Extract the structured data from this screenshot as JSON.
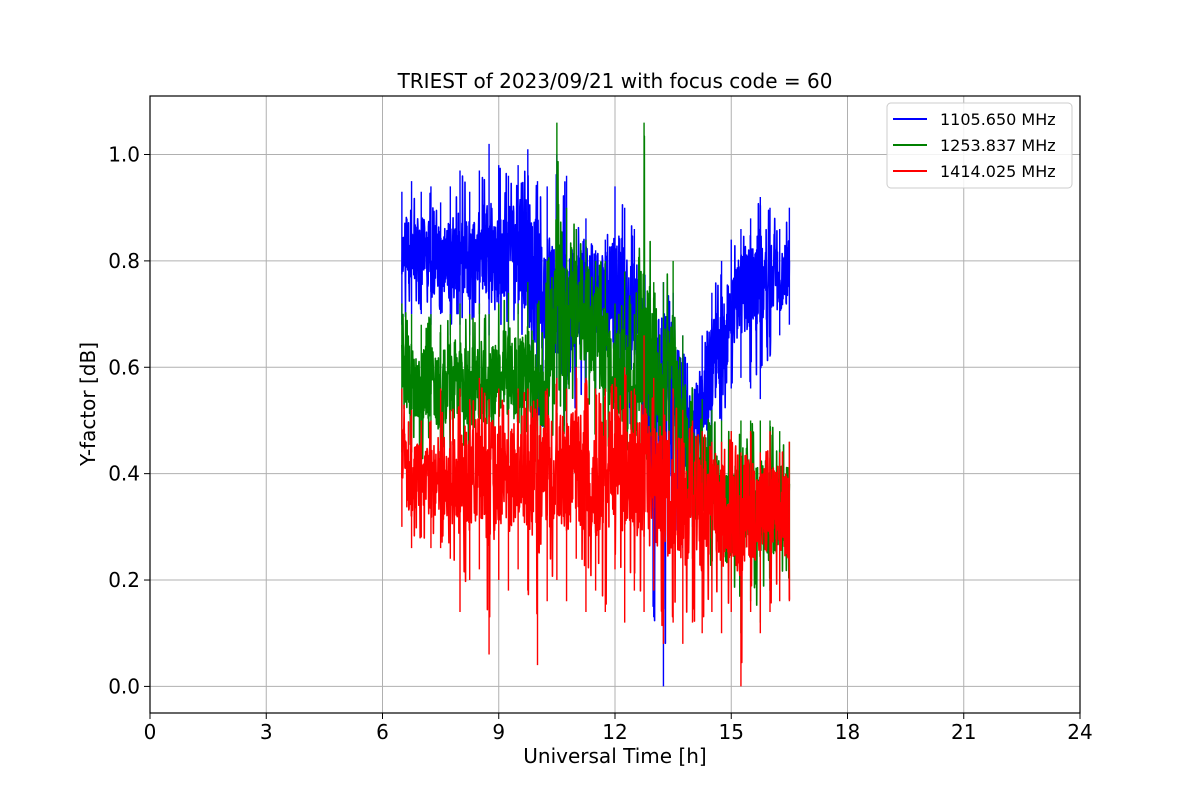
{
  "chart_data": {
    "type": "line",
    "title": "TRIEST of 2023/09/21 with focus code = 60",
    "xlabel": "Universal Time [h]",
    "ylabel": "Y-factor [dB]",
    "xlim": [
      0,
      24
    ],
    "ylim": [
      -0.05,
      1.11
    ],
    "xticks": [
      0,
      3,
      6,
      9,
      12,
      15,
      18,
      21,
      24
    ],
    "yticks": [
      0.0,
      0.2,
      0.4,
      0.6,
      0.8,
      1.0
    ],
    "xtick_labels": [
      "0",
      "3",
      "6",
      "9",
      "12",
      "15",
      "18",
      "21",
      "24"
    ],
    "ytick_labels": [
      "0.0",
      "0.2",
      "0.4",
      "0.6",
      "0.8",
      "1.0"
    ],
    "grid": true,
    "legend_position": "top-right",
    "series": [
      {
        "name": "1105.650 MHz",
        "color": "#0000ff",
        "x": [
          6.5,
          6.75,
          7.0,
          7.25,
          7.5,
          7.75,
          8.0,
          8.25,
          8.5,
          8.75,
          9.0,
          9.25,
          9.5,
          9.75,
          10.0,
          10.25,
          10.5,
          10.75,
          11.0,
          11.25,
          11.5,
          11.75,
          12.0,
          12.25,
          12.5,
          12.75,
          13.0,
          13.25,
          13.5,
          13.75,
          14.0,
          14.25,
          14.5,
          14.75,
          15.0,
          15.25,
          15.5,
          15.75,
          16.0,
          16.25,
          16.5
        ],
        "y_mid": [
          0.81,
          0.83,
          0.82,
          0.8,
          0.81,
          0.8,
          0.82,
          0.8,
          0.83,
          0.82,
          0.8,
          0.82,
          0.84,
          0.8,
          0.76,
          0.72,
          0.74,
          0.7,
          0.72,
          0.76,
          0.74,
          0.72,
          0.74,
          0.72,
          0.7,
          0.6,
          0.52,
          0.5,
          0.54,
          0.5,
          0.48,
          0.52,
          0.6,
          0.66,
          0.7,
          0.74,
          0.76,
          0.76,
          0.78,
          0.76,
          0.78
        ],
        "y_min": [
          0.68,
          0.7,
          0.7,
          0.68,
          0.7,
          0.66,
          0.68,
          0.66,
          0.7,
          0.66,
          0.68,
          0.66,
          0.7,
          0.56,
          0.5,
          0.48,
          0.52,
          0.46,
          0.52,
          0.5,
          0.54,
          0.52,
          0.5,
          0.48,
          0.44,
          0.34,
          0.13,
          0.0,
          0.3,
          0.26,
          0.3,
          0.34,
          0.4,
          0.5,
          0.56,
          0.58,
          0.56,
          0.54,
          0.62,
          0.66,
          0.68
        ],
        "y_max": [
          0.93,
          0.95,
          0.93,
          0.94,
          0.91,
          0.94,
          0.97,
          0.93,
          0.97,
          1.02,
          0.98,
          0.96,
          0.98,
          1.01,
          0.95,
          0.94,
          1.0,
          0.96,
          0.86,
          0.88,
          0.82,
          0.84,
          0.94,
          0.9,
          0.86,
          0.78,
          0.72,
          0.76,
          0.74,
          0.66,
          0.56,
          0.66,
          0.74,
          0.8,
          0.84,
          0.86,
          0.88,
          0.92,
          0.9,
          0.86,
          0.9
        ]
      },
      {
        "name": "1253.837 MHz",
        "color": "#008000",
        "x": [
          6.5,
          6.75,
          7.0,
          7.25,
          7.5,
          7.75,
          8.0,
          8.25,
          8.5,
          8.75,
          9.0,
          9.25,
          9.5,
          9.75,
          10.0,
          10.25,
          10.5,
          10.75,
          11.0,
          11.25,
          11.5,
          11.75,
          12.0,
          12.25,
          12.5,
          12.75,
          13.0,
          13.25,
          13.5,
          13.75,
          14.0,
          14.25,
          14.5,
          14.75,
          15.0,
          15.25,
          15.5,
          15.75,
          16.0,
          16.25,
          16.5
        ],
        "y_mid": [
          0.6,
          0.58,
          0.56,
          0.58,
          0.55,
          0.58,
          0.57,
          0.55,
          0.58,
          0.56,
          0.58,
          0.6,
          0.57,
          0.6,
          0.56,
          0.58,
          0.78,
          0.66,
          0.72,
          0.7,
          0.66,
          0.64,
          0.58,
          0.6,
          0.52,
          0.7,
          0.56,
          0.56,
          0.6,
          0.5,
          0.4,
          0.4,
          0.36,
          0.34,
          0.32,
          0.34,
          0.36,
          0.34,
          0.32,
          0.34,
          0.34
        ],
        "y_min": [
          0.44,
          0.44,
          0.42,
          0.44,
          0.4,
          0.42,
          0.44,
          0.4,
          0.44,
          0.42,
          0.44,
          0.42,
          0.44,
          0.44,
          0.4,
          0.42,
          0.5,
          0.46,
          0.5,
          0.48,
          0.46,
          0.44,
          0.42,
          0.4,
          0.38,
          0.4,
          0.36,
          0.34,
          0.38,
          0.28,
          0.24,
          0.22,
          0.2,
          0.2,
          0.2,
          0.1,
          0.16,
          0.12,
          0.18,
          0.2,
          0.2
        ],
        "y_max": [
          0.72,
          0.7,
          0.68,
          0.7,
          0.68,
          0.7,
          0.72,
          0.7,
          0.72,
          0.7,
          0.72,
          0.74,
          0.72,
          0.76,
          0.72,
          0.8,
          1.06,
          0.9,
          0.86,
          0.84,
          0.8,
          0.8,
          0.72,
          0.78,
          0.7,
          1.06,
          0.76,
          0.76,
          0.8,
          0.66,
          0.56,
          0.54,
          0.52,
          0.5,
          0.48,
          0.5,
          0.5,
          0.5,
          0.5,
          0.48,
          0.46
        ]
      },
      {
        "name": "1414.025 MHz",
        "color": "#ff0000",
        "x": [
          6.5,
          6.75,
          7.0,
          7.25,
          7.5,
          7.75,
          8.0,
          8.25,
          8.5,
          8.75,
          9.0,
          9.25,
          9.5,
          9.75,
          10.0,
          10.25,
          10.5,
          10.75,
          11.0,
          11.25,
          11.5,
          11.75,
          12.0,
          12.25,
          12.5,
          12.75,
          13.0,
          13.25,
          13.5,
          13.75,
          14.0,
          14.25,
          14.5,
          14.75,
          15.0,
          15.25,
          15.5,
          15.75,
          16.0,
          16.25,
          16.5
        ],
        "y_mid": [
          0.42,
          0.38,
          0.4,
          0.38,
          0.4,
          0.38,
          0.4,
          0.38,
          0.42,
          0.38,
          0.4,
          0.38,
          0.42,
          0.4,
          0.38,
          0.4,
          0.42,
          0.4,
          0.42,
          0.4,
          0.38,
          0.4,
          0.42,
          0.4,
          0.38,
          0.4,
          0.38,
          0.36,
          0.38,
          0.34,
          0.34,
          0.32,
          0.34,
          0.32,
          0.34,
          0.32,
          0.34,
          0.32,
          0.34,
          0.32,
          0.32
        ],
        "y_min": [
          0.3,
          0.26,
          0.28,
          0.26,
          0.26,
          0.24,
          0.14,
          0.2,
          0.22,
          0.06,
          0.2,
          0.18,
          0.22,
          0.18,
          0.04,
          0.16,
          0.2,
          0.16,
          0.24,
          0.14,
          0.18,
          0.14,
          0.22,
          0.12,
          0.18,
          0.14,
          0.18,
          0.08,
          0.12,
          0.08,
          0.12,
          0.1,
          0.14,
          0.1,
          0.14,
          0.0,
          0.14,
          0.1,
          0.14,
          0.16,
          0.16
        ],
        "y_max": [
          0.56,
          0.52,
          0.5,
          0.5,
          0.56,
          0.52,
          0.56,
          0.54,
          0.58,
          0.54,
          0.56,
          0.52,
          0.56,
          0.56,
          0.54,
          0.56,
          0.58,
          0.56,
          0.6,
          0.58,
          0.56,
          0.56,
          0.58,
          0.6,
          0.56,
          0.66,
          0.58,
          0.56,
          0.56,
          0.52,
          0.5,
          0.48,
          0.46,
          0.46,
          0.48,
          0.44,
          0.48,
          0.44,
          0.48,
          0.44,
          0.46
        ]
      }
    ]
  }
}
